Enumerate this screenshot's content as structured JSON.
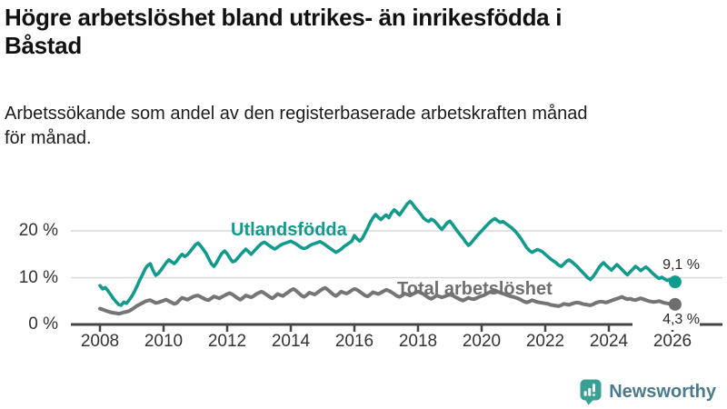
{
  "header": {
    "title_lines": [
      "Högre arbetslöshet bland utrikes- än inrikesfödda i",
      "Båstad"
    ],
    "subtitle_lines": [
      "Arbetssökande som andel av den registerbaserade arbetskraften månad",
      "för månad."
    ]
  },
  "chart_data": {
    "type": "line",
    "unit": "%",
    "frequency": "monthly",
    "x_start": "2008-01",
    "x_end": "2026-02",
    "x_tick_years": [
      "2008",
      "2010",
      "2012",
      "2014",
      "2016",
      "2018",
      "2020",
      "2022",
      "2024",
      "2026"
    ],
    "y_ticks": [
      {
        "value": 0,
        "label": "0 %"
      },
      {
        "value": 10,
        "label": "10 %"
      },
      {
        "value": 20,
        "label": "20 %"
      }
    ],
    "ylim": [
      0,
      27
    ],
    "grid": "horizontal",
    "legend_position": "inline-labels",
    "series": [
      {
        "name": "Utlandsfödda",
        "color": "#129a8d",
        "end_label": "9,1 %",
        "last_value": 9.1,
        "values": [
          8.3,
          7.6,
          7.9,
          7.2,
          6.4,
          5.6,
          4.9,
          4.3,
          4.1,
          4.8,
          4.5,
          5.2,
          6.0,
          7.0,
          8.2,
          9.5,
          10.6,
          11.8,
          12.6,
          13.0,
          11.6,
          10.5,
          10.9,
          11.6,
          12.4,
          13.2,
          13.8,
          13.4,
          13.0,
          13.6,
          14.4,
          15.0,
          14.5,
          14.9,
          15.6,
          16.3,
          17.0,
          17.4,
          16.8,
          16.0,
          15.2,
          14.1,
          13.0,
          12.4,
          13.2,
          14.3,
          15.2,
          15.7,
          15.1,
          14.2,
          13.4,
          13.6,
          14.2,
          14.9,
          15.5,
          16.1,
          15.6,
          15.0,
          15.6,
          16.2,
          16.8,
          17.3,
          17.6,
          17.2,
          16.8,
          16.4,
          16.1,
          16.5,
          16.9,
          17.2,
          17.4,
          17.6,
          17.8,
          17.5,
          17.2,
          16.8,
          16.4,
          16.2,
          16.4,
          16.8,
          17.1,
          17.3,
          17.5,
          17.7,
          17.4,
          17.0,
          16.6,
          16.2,
          15.8,
          15.4,
          15.7,
          16.1,
          16.6,
          17.0,
          17.4,
          17.8,
          19.0,
          18.3,
          17.8,
          18.4,
          19.5,
          20.6,
          21.8,
          22.8,
          23.5,
          22.9,
          22.4,
          23.0,
          23.4,
          22.8,
          23.8,
          24.5,
          24.0,
          23.4,
          24.2,
          25.0,
          25.8,
          26.3,
          25.7,
          24.9,
          24.3,
          23.6,
          22.8,
          22.3,
          22.0,
          22.5,
          22.2,
          21.6,
          20.9,
          20.3,
          21.0,
          21.7,
          22.1,
          21.4,
          20.6,
          19.8,
          19.1,
          18.4,
          17.6,
          16.9,
          17.4,
          18.1,
          18.8,
          19.4,
          20.0,
          20.6,
          21.2,
          21.8,
          22.3,
          22.6,
          22.2,
          21.8,
          22.0,
          21.6,
          21.2,
          20.8,
          20.3,
          19.7,
          19.0,
          18.2,
          17.3,
          16.4,
          15.8,
          15.4,
          15.7,
          16.0,
          15.8,
          15.5,
          15.0,
          14.5,
          14.0,
          13.6,
          13.2,
          12.7,
          12.4,
          12.9,
          13.5,
          13.8,
          13.4,
          12.9,
          12.4,
          11.8,
          11.2,
          10.6,
          10.0,
          9.6,
          10.2,
          11.0,
          11.9,
          12.7,
          13.2,
          12.6,
          12.1,
          11.6,
          12.2,
          12.8,
          12.3,
          11.7,
          11.1,
          10.6,
          11.2,
          11.8,
          12.4,
          12.0,
          11.5,
          11.9,
          12.3,
          11.8,
          11.2,
          10.7,
          10.2,
          9.8,
          10.1,
          9.7,
          9.4,
          9.6,
          9.3,
          9.1
        ]
      },
      {
        "name": "Total arbetslöshet",
        "color": "#757575",
        "end_label": "4,3 %",
        "last_value": 4.3,
        "values": [
          3.4,
          3.2,
          3.0,
          2.8,
          2.6,
          2.5,
          2.4,
          2.3,
          2.4,
          2.6,
          2.7,
          2.9,
          3.2,
          3.6,
          4.0,
          4.3,
          4.6,
          4.9,
          5.1,
          5.2,
          4.9,
          4.6,
          4.7,
          4.9,
          5.1,
          5.3,
          5.0,
          4.7,
          4.4,
          4.6,
          5.2,
          5.7,
          5.5,
          5.3,
          5.6,
          5.9,
          6.1,
          6.2,
          5.9,
          5.6,
          5.3,
          5.2,
          5.6,
          6.0,
          5.8,
          5.6,
          5.9,
          6.2,
          6.5,
          6.7,
          6.4,
          6.0,
          5.6,
          5.3,
          5.7,
          6.2,
          6.0,
          5.8,
          6.1,
          6.5,
          6.8,
          7.0,
          6.7,
          6.3,
          5.9,
          5.6,
          6.0,
          6.5,
          6.3,
          6.1,
          6.5,
          6.9,
          7.3,
          7.6,
          7.2,
          6.7,
          6.2,
          5.9,
          6.3,
          6.8,
          6.6,
          6.4,
          6.8,
          7.2,
          7.6,
          7.8,
          7.4,
          6.9,
          6.4,
          6.1,
          6.5,
          7.0,
          6.8,
          6.6,
          6.9,
          7.3,
          7.6,
          7.4,
          7.0,
          6.6,
          6.2,
          6.0,
          6.4,
          6.9,
          6.7,
          6.5,
          6.8,
          7.1,
          7.4,
          7.2,
          6.9,
          6.5,
          6.1,
          5.9,
          6.2,
          6.6,
          6.4,
          6.2,
          6.5,
          6.8,
          7.0,
          6.8,
          6.5,
          6.1,
          5.7,
          5.5,
          5.8,
          6.2,
          6.0,
          5.8,
          6.0,
          6.2,
          6.4,
          6.2,
          5.9,
          5.6,
          5.3,
          5.1,
          5.4,
          5.7,
          5.5,
          5.4,
          5.6,
          5.9,
          6.1,
          6.3,
          6.6,
          6.9,
          7.1,
          7.2,
          7.0,
          6.8,
          6.6,
          6.4,
          6.2,
          6.0,
          5.9,
          5.7,
          5.5,
          5.2,
          4.9,
          4.7,
          4.9,
          5.2,
          5.0,
          4.8,
          4.7,
          4.6,
          4.5,
          4.4,
          4.2,
          4.1,
          4.0,
          3.9,
          4.1,
          4.4,
          4.3,
          4.2,
          4.4,
          4.6,
          4.7,
          4.6,
          4.4,
          4.3,
          4.2,
          4.1,
          4.3,
          4.6,
          4.8,
          4.9,
          4.8,
          4.7,
          4.9,
          5.1,
          5.3,
          5.5,
          5.7,
          5.9,
          5.6,
          5.4,
          5.5,
          5.3,
          5.2,
          5.4,
          5.6,
          5.4,
          5.2,
          5.0,
          4.9,
          4.8,
          4.9,
          5.0,
          4.8,
          4.6,
          4.5,
          4.4,
          4.4,
          4.3
        ]
      }
    ]
  },
  "branding": {
    "logo_text": "Newsworthy",
    "logo_icon": "newsworthy-chart-bubble-icon"
  },
  "colors": {
    "accent_teal": "#129a8d",
    "series_gray": "#757575",
    "grid": "#d9d9d9",
    "axis": "#454545",
    "axis_text": "#333333",
    "logo_teal": "#3ba094",
    "logo_text": "#4a7a8c"
  }
}
